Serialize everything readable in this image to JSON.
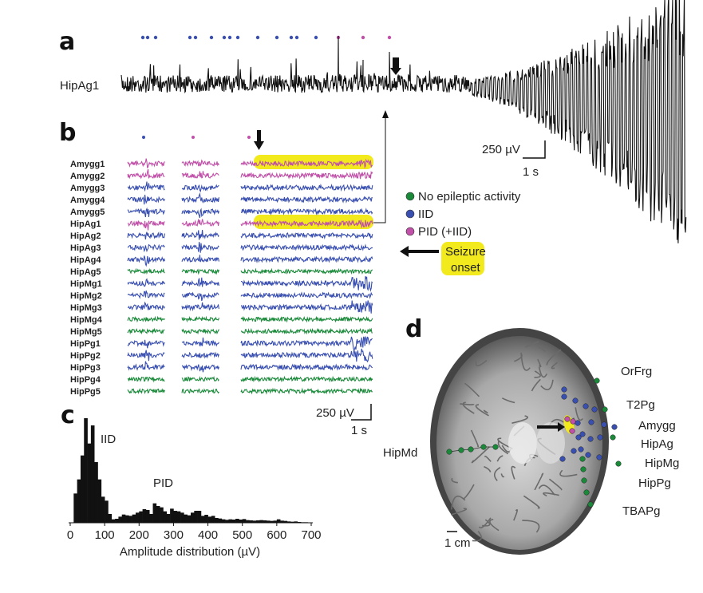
{
  "panels": {
    "a": {
      "label": "a",
      "channel": "HipAg1",
      "scale_amplitude": "250 µV",
      "scale_time": "1 s",
      "event_dots": [
        "IID",
        "IID",
        "IID",
        "IID",
        "IID",
        "IID",
        "IID",
        "IID",
        "IID",
        "IID",
        "IID",
        "IID",
        "IID",
        "IID",
        "PID",
        "PID",
        "PID",
        "PID"
      ]
    },
    "b": {
      "label": "b",
      "scale_amplitude": "250 µV",
      "scale_time": "1 s",
      "channels": [
        {
          "name": "Amygg1",
          "class": "PID"
        },
        {
          "name": "Amygg2",
          "class": "PID"
        },
        {
          "name": "Amygg3",
          "class": "IID"
        },
        {
          "name": "Amygg4",
          "class": "IID"
        },
        {
          "name": "Amygg5",
          "class": "IID"
        },
        {
          "name": "HipAg1",
          "class": "PID"
        },
        {
          "name": "HipAg2",
          "class": "IID"
        },
        {
          "name": "HipAg3",
          "class": "IID"
        },
        {
          "name": "HipAg4",
          "class": "IID"
        },
        {
          "name": "HipAg5",
          "class": "none"
        },
        {
          "name": "HipMg1",
          "class": "IID"
        },
        {
          "name": "HipMg2",
          "class": "IID"
        },
        {
          "name": "HipMg3",
          "class": "IID"
        },
        {
          "name": "HipMg4",
          "class": "none"
        },
        {
          "name": "HipMg5",
          "class": "none"
        },
        {
          "name": "HipPg1",
          "class": "IID"
        },
        {
          "name": "HipPg2",
          "class": "IID"
        },
        {
          "name": "HipPg3",
          "class": "IID"
        },
        {
          "name": "HipPg4",
          "class": "none"
        },
        {
          "name": "HipPg5",
          "class": "none"
        }
      ],
      "highlighted_channels": [
        "Amygg1",
        "HipAg1"
      ],
      "legend": [
        {
          "label": "No epileptic activity",
          "class": "none"
        },
        {
          "label": "IID",
          "class": "IID"
        },
        {
          "label": "PID (+IID)",
          "class": "PID"
        }
      ],
      "seizure_onset_label": "Seizure onset"
    },
    "d": {
      "label": "d",
      "scale": "1 cm",
      "electrode_labels": [
        "OrFrg",
        "T2Pg",
        "Amygg",
        "HipAg",
        "HipMg",
        "HipPg",
        "TBAPg",
        "HipMd"
      ]
    }
  },
  "colors": {
    "none": "#1a8a3a",
    "IID": "#3a50b0",
    "PID": "#c050a8",
    "highlight": "#f2ea1c",
    "trace": "#111111"
  },
  "chart_data": {
    "type": "bar",
    "label": "c",
    "xlabel": "Amplitude distribution (µV)",
    "ylabel": "",
    "xlim": [
      0,
      700
    ],
    "xticks": [
      "0",
      "100",
      "200",
      "300",
      "400",
      "500",
      "600",
      "700"
    ],
    "bin_start": 10,
    "bin_width": 10,
    "values": [
      110,
      163,
      253,
      393,
      298,
      366,
      228,
      163,
      98,
      83,
      33,
      13,
      15,
      23,
      31,
      28,
      26,
      31,
      38,
      43,
      51,
      48,
      33,
      73,
      63,
      58,
      43,
      33,
      53,
      45,
      43,
      38,
      31,
      28,
      38,
      45,
      45,
      26,
      30,
      23,
      26,
      18,
      16,
      13,
      11,
      13,
      12,
      15,
      12,
      14,
      10,
      9,
      8,
      9,
      10,
      9,
      8,
      7,
      8,
      13,
      8,
      7,
      5,
      4,
      5,
      3,
      2,
      2
    ],
    "annotations": [
      "IID",
      "PID"
    ]
  }
}
